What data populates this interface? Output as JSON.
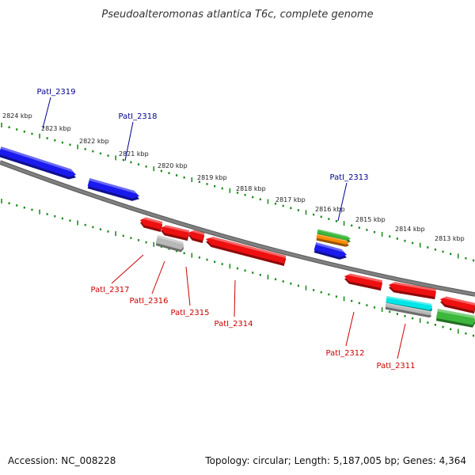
{
  "title": "Pseudoalteromonas atlantica T6c, complete genome",
  "footer": {
    "accession": "Accession: NC_008228",
    "info": "Topology: circular; Length: 5,187,005 bp; Genes: 4,364"
  },
  "colors": {
    "backbone": "#808080",
    "tick": "#1f8c1f",
    "forward_label": "#00008b",
    "reverse_label": "#cc0000",
    "blue": "#1a1aee",
    "red": "#ee1010",
    "green": "#3cb83c",
    "orange": "#ff8c00",
    "grey": "#b8b8b8",
    "cyan": "#00e5e5"
  },
  "scale_labels": [
    "2824 kbp",
    "2823 kbp",
    "2822 kbp",
    "2821 kbp",
    "2820 kbp",
    "2819 kbp",
    "2818 kbp",
    "2817 kbp",
    "2816 kbp",
    "2815 kbp",
    "2814 kbp",
    "2813 kbp"
  ],
  "genes_forward": [
    {
      "name": "PatI_2319",
      "color": "blue"
    },
    {
      "name": "PatI_2318",
      "color": "blue"
    },
    {
      "name": "PatI_2313",
      "color": "green"
    },
    {
      "name": "",
      "color": "orange"
    },
    {
      "name": "",
      "color": "blue"
    }
  ],
  "genes_reverse": [
    {
      "name": "PatI_2317",
      "color": "red"
    },
    {
      "name": "PatI_2316",
      "color": "red"
    },
    {
      "name": "",
      "color": "grey"
    },
    {
      "name": "PatI_2315",
      "color": "red"
    },
    {
      "name": "PatI_2314",
      "color": "red"
    },
    {
      "name": "PatI_2312",
      "color": "red"
    },
    {
      "name": "PatI_2311",
      "color": "red"
    },
    {
      "name": "",
      "color": "cyan"
    },
    {
      "name": "",
      "color": "grey"
    },
    {
      "name": "",
      "color": "red"
    },
    {
      "name": "",
      "color": "green"
    }
  ]
}
